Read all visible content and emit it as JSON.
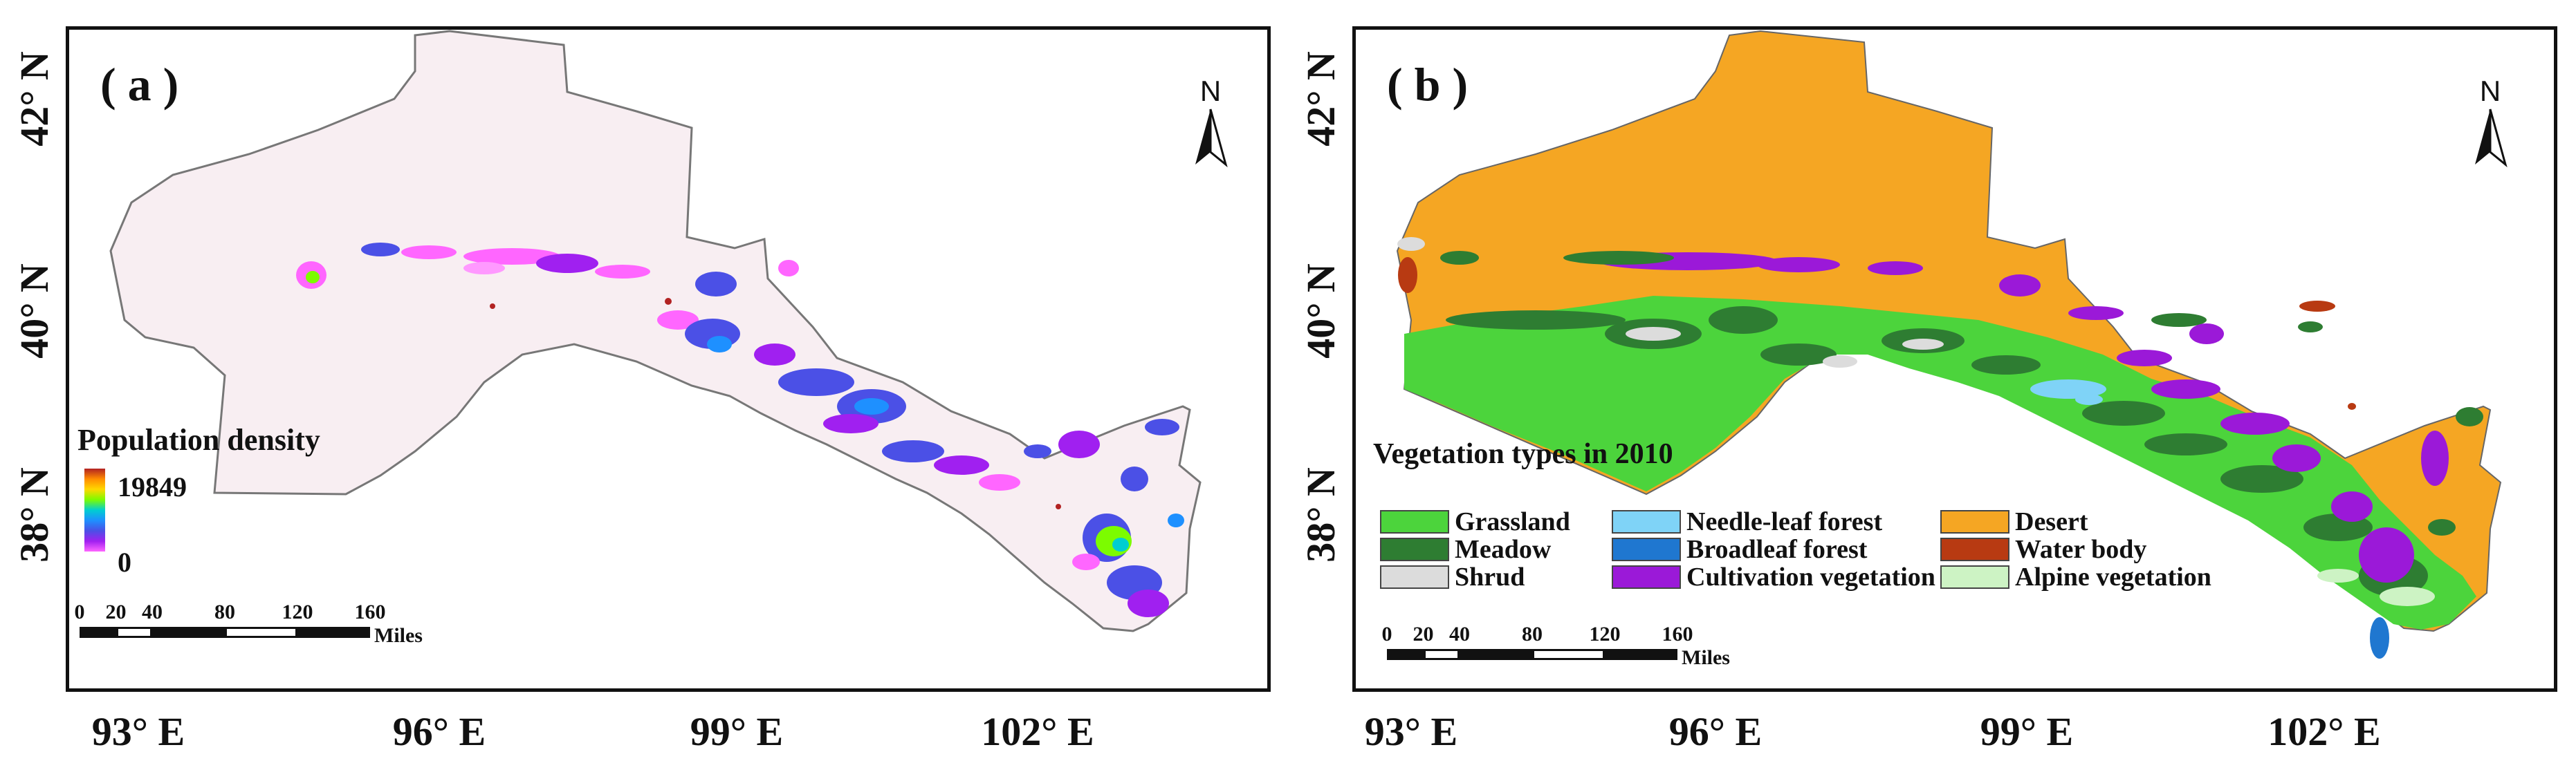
{
  "panels": {
    "a": {
      "label": "( a )",
      "north": "N",
      "legend": {
        "title": "Population density",
        "max_label": "19849",
        "min_label": "0",
        "ramp_colors": [
          "#b22222",
          "#ff8c00",
          "#ffd700",
          "#7cfc00",
          "#00ced1",
          "#1e90ff",
          "#4b50e6",
          "#a020f0",
          "#ff66ff"
        ]
      },
      "scalebar": {
        "ticks": [
          "0",
          "20",
          "40",
          "80",
          "120",
          "160"
        ],
        "tick_values": [
          0,
          20,
          40,
          80,
          120,
          160
        ],
        "unit": "Miles"
      },
      "lat_labels": [
        "42° N",
        "40° N",
        "38° N"
      ],
      "lon_labels": [
        "93° E",
        "96° E",
        "99° E",
        "102° E"
      ]
    },
    "b": {
      "label": "( b )",
      "north": "N",
      "legend": {
        "title": "Vegetation types in 2010",
        "items": [
          {
            "label": "Grassland",
            "color": "#4cd43c"
          },
          {
            "label": "Meadow",
            "color": "#2e7d32"
          },
          {
            "label": "Shrud",
            "color": "#dcdcdc"
          },
          {
            "label": "Needle-leaf forest",
            "color": "#7fd3f7"
          },
          {
            "label": "Broadleaf forest",
            "color": "#1f77d0"
          },
          {
            "label": "Cultivation vegetation",
            "color": "#9b19d8"
          },
          {
            "label": "Desert",
            "color": "#f5a623"
          },
          {
            "label": "Water body",
            "color": "#b83a12"
          },
          {
            "label": "Alpine vegetation",
            "color": "#cdf3c4"
          }
        ]
      },
      "scalebar": {
        "ticks": [
          "0",
          "20",
          "40",
          "80",
          "120",
          "160"
        ],
        "tick_values": [
          0,
          20,
          40,
          80,
          120,
          160
        ],
        "unit": "Miles"
      },
      "lat_labels": [
        "42° N",
        "40° N",
        "38° N"
      ],
      "lon_labels": [
        "93° E",
        "96° E",
        "99° E",
        "102° E"
      ]
    }
  },
  "colors": {
    "region_fill_a": "#f8eef2",
    "region_stroke": "#666666",
    "desert": "#f5a623",
    "grassland": "#4cd43c",
    "meadow": "#2e7d32",
    "cultivation": "#9b19d8",
    "broadleaf": "#1f77d0",
    "water": "#b83a12",
    "alpine": "#cdf3c4",
    "shrub": "#dcdcdc",
    "needleleaf": "#7fd3f7",
    "pop_low": "#ff66ff",
    "pop_mid": "#4b50e6",
    "pop_high": "#1e90ff",
    "pop_green": "#7cfc00",
    "pop_red": "#b22222"
  }
}
